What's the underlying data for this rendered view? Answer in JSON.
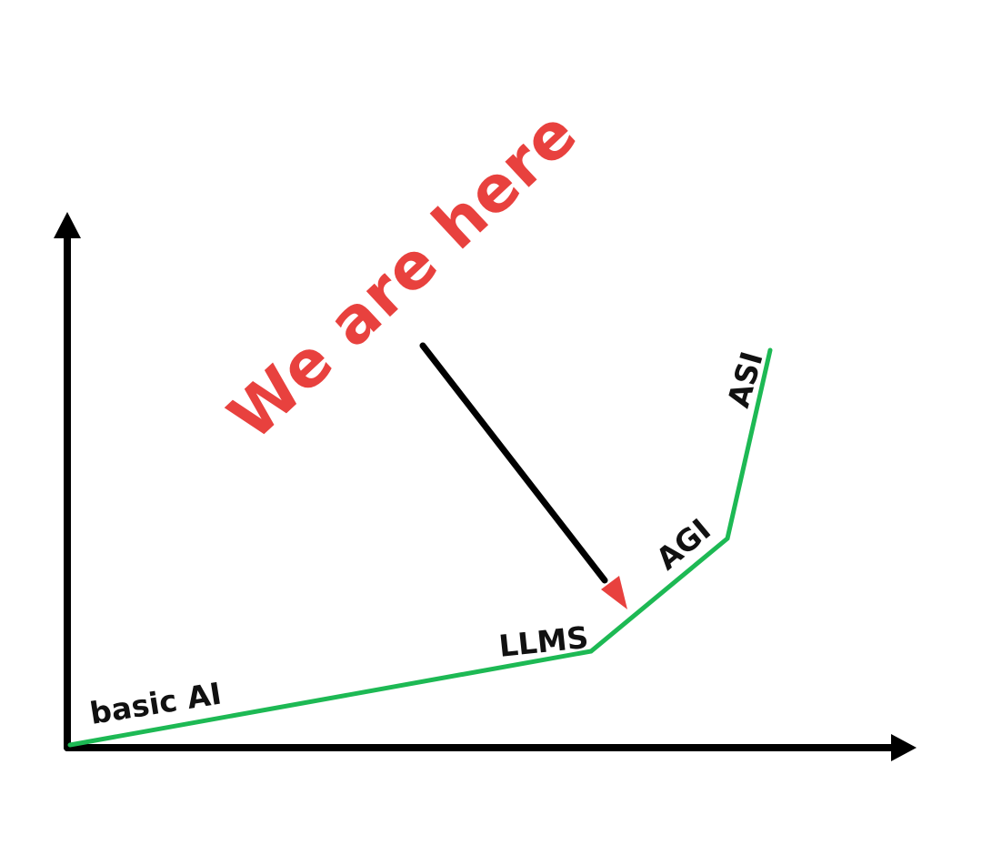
{
  "diagram": {
    "annotation": "We are here",
    "stages": [
      {
        "label": "basic AI"
      },
      {
        "label": "LLMS"
      },
      {
        "label": "AGI"
      },
      {
        "label": "ASI"
      }
    ],
    "colors": {
      "curve": "#1db954",
      "axes": "#000000",
      "annotation": "#e8413e",
      "pointer": "#000000",
      "pointer_head": "#e8413e"
    }
  }
}
